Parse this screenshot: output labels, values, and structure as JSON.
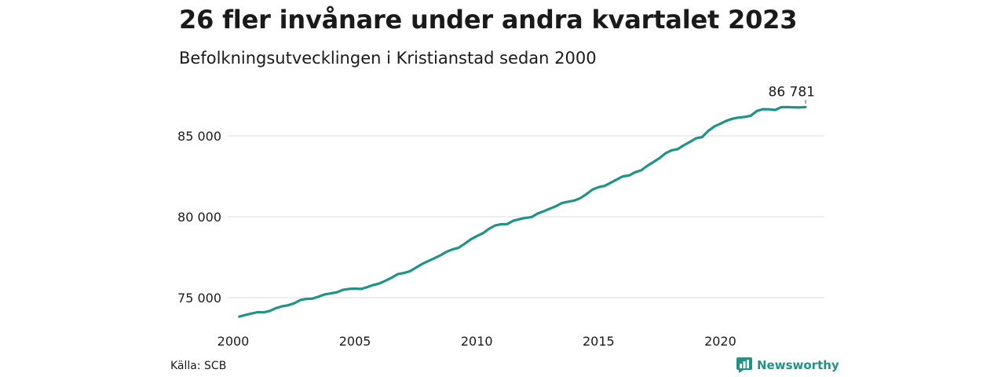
{
  "title": "26 fler invånare under andra kvartalet 2023",
  "subtitle": "Befolkningsutvecklingen i Kristianstad sedan 2000",
  "source": "Källa: SCB",
  "brand": "Newsworthy",
  "colors": {
    "line": "#1e9486",
    "grid": "#dcdcdc",
    "text": "#1a1a1a",
    "brand": "#1e9486"
  },
  "chart_data": {
    "type": "line",
    "title": "26 fler invånare under andra kvartalet 2023",
    "subtitle": "Befolkningsutvecklingen i Kristianstad sedan 2000",
    "xlabel": "",
    "ylabel": "",
    "xlim": [
      2000,
      2023.5
    ],
    "ylim": [
      73000,
      87500
    ],
    "grid": true,
    "x_ticks": [
      2000,
      2005,
      2010,
      2015,
      2020
    ],
    "x_tick_labels": [
      "2000",
      "2005",
      "2010",
      "2015",
      "2020"
    ],
    "y_ticks": [
      75000,
      80000,
      85000
    ],
    "y_tick_labels": [
      "75 000",
      "80 000",
      "85 000"
    ],
    "end_label": "86 781",
    "series": [
      {
        "values": [
          [
            2000.25,
            73830
          ],
          [
            2000.5,
            73930
          ],
          [
            2000.75,
            74020
          ],
          [
            2001.0,
            74100
          ],
          [
            2001.25,
            74090
          ],
          [
            2001.5,
            74180
          ],
          [
            2001.75,
            74350
          ],
          [
            2002.0,
            74460
          ],
          [
            2002.25,
            74530
          ],
          [
            2002.5,
            74650
          ],
          [
            2002.75,
            74850
          ],
          [
            2003.0,
            74920
          ],
          [
            2003.25,
            74940
          ],
          [
            2003.5,
            75060
          ],
          [
            2003.75,
            75200
          ],
          [
            2004.0,
            75260
          ],
          [
            2004.25,
            75330
          ],
          [
            2004.5,
            75480
          ],
          [
            2004.75,
            75540
          ],
          [
            2005.0,
            75560
          ],
          [
            2005.25,
            75540
          ],
          [
            2005.5,
            75650
          ],
          [
            2005.75,
            75780
          ],
          [
            2006.0,
            75880
          ],
          [
            2006.25,
            76050
          ],
          [
            2006.5,
            76230
          ],
          [
            2006.75,
            76450
          ],
          [
            2007.0,
            76520
          ],
          [
            2007.25,
            76630
          ],
          [
            2007.5,
            76850
          ],
          [
            2007.75,
            77080
          ],
          [
            2008.0,
            77250
          ],
          [
            2008.25,
            77430
          ],
          [
            2008.5,
            77610
          ],
          [
            2008.75,
            77830
          ],
          [
            2009.0,
            77980
          ],
          [
            2009.25,
            78080
          ],
          [
            2009.5,
            78330
          ],
          [
            2009.75,
            78600
          ],
          [
            2010.0,
            78800
          ],
          [
            2010.25,
            78980
          ],
          [
            2010.5,
            79250
          ],
          [
            2010.75,
            79460
          ],
          [
            2011.0,
            79540
          ],
          [
            2011.25,
            79550
          ],
          [
            2011.5,
            79750
          ],
          [
            2011.75,
            79850
          ],
          [
            2012.0,
            79930
          ],
          [
            2012.25,
            79980
          ],
          [
            2012.5,
            80200
          ],
          [
            2012.75,
            80340
          ],
          [
            2013.0,
            80500
          ],
          [
            2013.25,
            80650
          ],
          [
            2013.5,
            80850
          ],
          [
            2013.75,
            80930
          ],
          [
            2014.0,
            81000
          ],
          [
            2014.25,
            81150
          ],
          [
            2014.5,
            81400
          ],
          [
            2014.75,
            81680
          ],
          [
            2015.0,
            81830
          ],
          [
            2015.25,
            81910
          ],
          [
            2015.5,
            82100
          ],
          [
            2015.75,
            82300
          ],
          [
            2016.0,
            82500
          ],
          [
            2016.25,
            82550
          ],
          [
            2016.5,
            82750
          ],
          [
            2016.75,
            82870
          ],
          [
            2017.0,
            83150
          ],
          [
            2017.25,
            83380
          ],
          [
            2017.5,
            83620
          ],
          [
            2017.75,
            83920
          ],
          [
            2018.0,
            84110
          ],
          [
            2018.25,
            84180
          ],
          [
            2018.5,
            84420
          ],
          [
            2018.75,
            84620
          ],
          [
            2019.0,
            84850
          ],
          [
            2019.25,
            84920
          ],
          [
            2019.5,
            85300
          ],
          [
            2019.75,
            85580
          ],
          [
            2020.0,
            85750
          ],
          [
            2020.25,
            85930
          ],
          [
            2020.5,
            86060
          ],
          [
            2020.75,
            86130
          ],
          [
            2021.0,
            86170
          ],
          [
            2021.25,
            86250
          ],
          [
            2021.5,
            86540
          ],
          [
            2021.75,
            86650
          ],
          [
            2022.0,
            86640
          ],
          [
            2022.25,
            86600
          ],
          [
            2022.5,
            86770
          ],
          [
            2022.75,
            86780
          ],
          [
            2023.0,
            86760
          ],
          [
            2023.25,
            86755
          ],
          [
            2023.5,
            86781
          ]
        ]
      }
    ]
  }
}
